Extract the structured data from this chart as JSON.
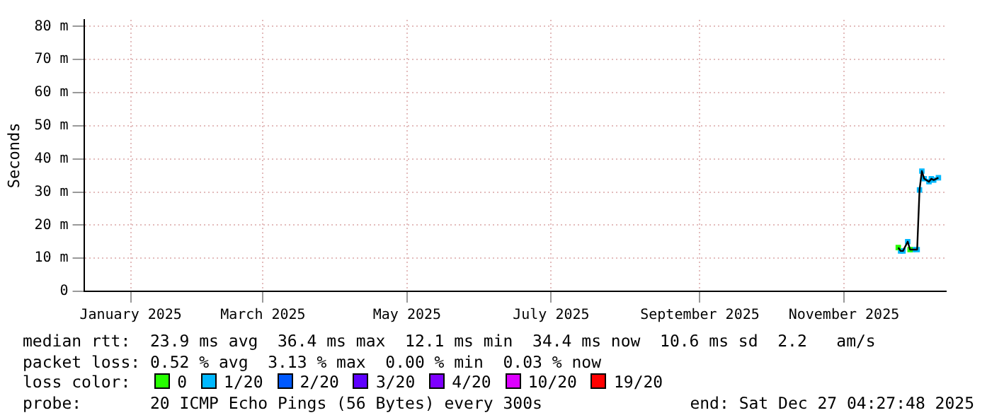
{
  "chart_data": {
    "type": "line",
    "ylabel": "Seconds",
    "legend_title": "loss color:",
    "legend": "bottom",
    "grid": true,
    "x": [
      "2025-12-07",
      "2025-12-08",
      "2025-12-09",
      "2025-12-11",
      "2025-12-12",
      "2025-12-13",
      "2025-12-15",
      "2025-12-16",
      "2025-12-17",
      "2025-12-18",
      "2025-12-20",
      "2025-12-21",
      "2025-12-22",
      "2025-12-24"
    ],
    "xlim": [
      "2024-12-27T04:27",
      "2025-12-27T04:27"
    ],
    "xticks": [
      {
        "value": "2025-01-16",
        "label": "January 2025"
      },
      {
        "value": "2025-03-13",
        "label": "March 2025"
      },
      {
        "value": "2025-05-13",
        "label": "May 2025"
      },
      {
        "value": "2025-07-13",
        "label": "July 2025"
      },
      {
        "value": "2025-09-14",
        "label": "September 2025"
      },
      {
        "value": "2025-11-14",
        "label": "November 2025"
      }
    ],
    "ylim": [
      0,
      82
    ],
    "yticks": [
      0,
      {
        "value": 10,
        "label": "10 m"
      },
      {
        "value": 20,
        "label": "20 m"
      },
      {
        "value": 30,
        "label": "30 m"
      },
      {
        "value": 40,
        "label": "40 m"
      },
      {
        "value": 50,
        "label": "50 m"
      },
      {
        "value": 60,
        "label": "60 m"
      },
      {
        "value": 70,
        "label": "70 m"
      },
      {
        "value": 80,
        "label": "80 m"
      }
    ],
    "series": [
      {
        "color": "#000000",
        "marker": "none",
        "values": [
          13.2,
          12.2,
          12.2,
          15.0,
          12.6,
          12.6,
          12.6,
          30.6,
          36.3,
          34.0,
          33.1,
          34.0,
          33.6,
          34.3
        ]
      },
      {
        "type": "scatter",
        "name": "0",
        "color": "#26ff00",
        "marker": "square",
        "values": [
          13.2,
          null,
          null,
          null,
          12.6,
          null,
          null,
          null,
          null,
          null,
          null,
          null,
          null,
          null
        ]
      },
      {
        "type": "scatter",
        "name": "1/20",
        "color": "#00b8ff",
        "marker": "square",
        "values": [
          null,
          12.2,
          12.2,
          15.0,
          null,
          12.6,
          12.6,
          30.6,
          36.3,
          34.0,
          33.1,
          34.0,
          33.6,
          34.3
        ]
      },
      {
        "type": "scatter",
        "name": "2/20",
        "color": "#0059ff",
        "marker": "square",
        "values": [
          null,
          null,
          null,
          null,
          null,
          null,
          null,
          null,
          null,
          null,
          null,
          null,
          null,
          null
        ]
      },
      {
        "type": "scatter",
        "name": "3/20",
        "color": "#5e00ff",
        "marker": "square",
        "values": [
          null,
          null,
          null,
          null,
          null,
          null,
          null,
          null,
          null,
          null,
          null,
          null,
          null,
          null
        ]
      },
      {
        "type": "scatter",
        "name": "4/20",
        "color": "#7e00ff",
        "marker": "square",
        "values": [
          null,
          null,
          null,
          null,
          null,
          null,
          null,
          null,
          null,
          null,
          null,
          null,
          null,
          null
        ]
      },
      {
        "type": "scatter",
        "name": "10/20",
        "color": "#dd00ff",
        "marker": "square",
        "values": [
          null,
          null,
          null,
          null,
          null,
          null,
          null,
          null,
          null,
          null,
          null,
          null,
          null,
          null
        ]
      },
      {
        "type": "scatter",
        "name": "19/20",
        "color": "#ff0000",
        "marker": "square",
        "values": [
          null,
          null,
          null,
          null,
          null,
          null,
          null,
          null,
          null,
          null,
          null,
          null,
          null,
          null
        ]
      }
    ],
    "annotations": [
      "median rtt:  23.9 ms avg  36.4 ms max  12.1 ms min  34.4 ms now  10.6 ms sd  2.2   am/s",
      "packet loss: 0.52 % avg  3.13 % max  0.00 % min  0.03 % now",
      "probe:       20 ICMP Echo Pings (56 Bytes) every 300s",
      "end: Sat Dec 27 04:27:48 2025"
    ]
  }
}
